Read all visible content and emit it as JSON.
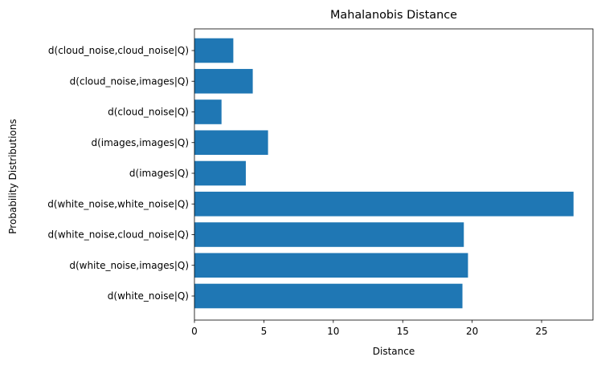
{
  "chart_data": {
    "type": "bar",
    "orientation": "horizontal",
    "title": "Mahalanobis Distance",
    "xlabel": "Distance",
    "ylabel": "Probability Distributions",
    "categories": [
      "d(white_noise|Q)",
      "d(white_noise,images|Q)",
      "d(white_noise,cloud_noise|Q)",
      "d(white_noise,white_noise|Q)",
      "d(images|Q)",
      "d(images,images|Q)",
      "d(cloud_noise|Q)",
      "d(cloud_noise,images|Q)",
      "d(cloud_noise,cloud_noise|Q)"
    ],
    "values": [
      19.3,
      19.7,
      19.4,
      27.3,
      3.7,
      5.3,
      1.95,
      4.2,
      2.8
    ],
    "xlim": [
      0,
      28.7
    ],
    "xticks": [
      0,
      5,
      10,
      15,
      20,
      25
    ],
    "grid": false,
    "bar_color": "#1f77b4"
  }
}
